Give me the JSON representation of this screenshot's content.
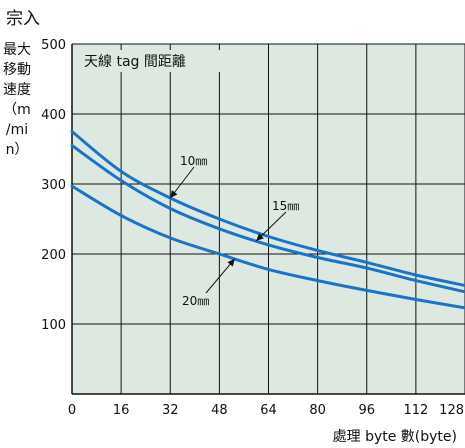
{
  "corner_label": "宗入",
  "chart_data": {
    "type": "line",
    "title": "天線 tag 間距離",
    "ylabel": "最大移動速度（m/min）",
    "xlabel": "處理 byte 數(byte)",
    "x_ticks": [
      "0",
      "16",
      "32",
      "48",
      "64",
      "80",
      "96",
      "112",
      "128"
    ],
    "y_ticks": [
      "100",
      "200",
      "300",
      "400",
      "500"
    ],
    "xlim": [
      0,
      128
    ],
    "ylim": [
      0,
      500
    ],
    "grid": true,
    "background": "#dde9e0",
    "line_color": "#1a73c8",
    "series": [
      {
        "name": "10㎜",
        "x": [
          0,
          16,
          32,
          48,
          64,
          80,
          96,
          112,
          128
        ],
        "y": [
          375,
          318,
          280,
          250,
          225,
          205,
          188,
          170,
          155
        ]
      },
      {
        "name": "15㎜",
        "x": [
          0,
          16,
          32,
          48,
          64,
          80,
          96,
          112,
          128
        ],
        "y": [
          355,
          305,
          265,
          236,
          213,
          195,
          180,
          162,
          146
        ]
      },
      {
        "name": "20㎜",
        "x": [
          0,
          16,
          32,
          48,
          64,
          80,
          96,
          112,
          128
        ],
        "y": [
          297,
          255,
          223,
          200,
          178,
          162,
          148,
          135,
          123
        ]
      }
    ]
  }
}
